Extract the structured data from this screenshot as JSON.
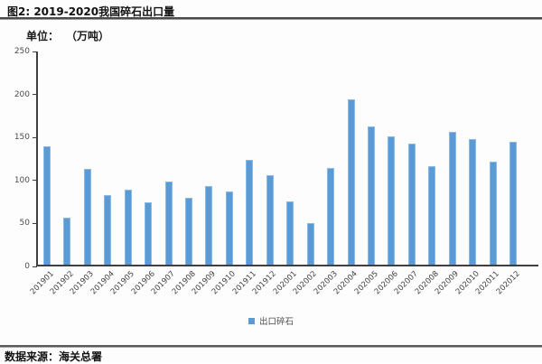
{
  "figure": {
    "title": "图2: 2019-2020我国碎石出口量",
    "unit_prefix": "单位：",
    "unit_value": "（万吨）",
    "source": "数据来源：海关总署"
  },
  "legend": {
    "label": "出口碎石"
  },
  "colors": {
    "bar_fill": "#5b9bd5",
    "bar_border": "#8ab9e3",
    "axis": "#3f3f3f",
    "tick_label": "#4d4d4d",
    "divider": "#4a4a4a"
  },
  "chart_data": {
    "type": "bar",
    "title": "图2: 2019-2020我国碎石出口量",
    "ylabel": "万吨",
    "categories": [
      "201901",
      "201902",
      "201903",
      "201904",
      "201905",
      "201906",
      "201907",
      "201908",
      "201909",
      "201910",
      "201911",
      "201912",
      "202001",
      "202002",
      "202003",
      "202004",
      "202005",
      "202006",
      "202007",
      "202008",
      "202009",
      "202010",
      "202011",
      "202012"
    ],
    "series": [
      {
        "name": "出口碎石",
        "values": [
          138,
          55,
          111,
          81,
          87,
          72,
          97,
          78,
          91,
          85,
          122,
          104,
          74,
          48,
          112,
          192,
          161,
          149,
          141,
          114,
          154,
          146,
          120,
          143
        ]
      }
    ],
    "ylim": [
      0,
      250
    ],
    "yticks": [
      0,
      50,
      100,
      150,
      200,
      250
    ],
    "grid": false,
    "legend_position": "bottom"
  }
}
